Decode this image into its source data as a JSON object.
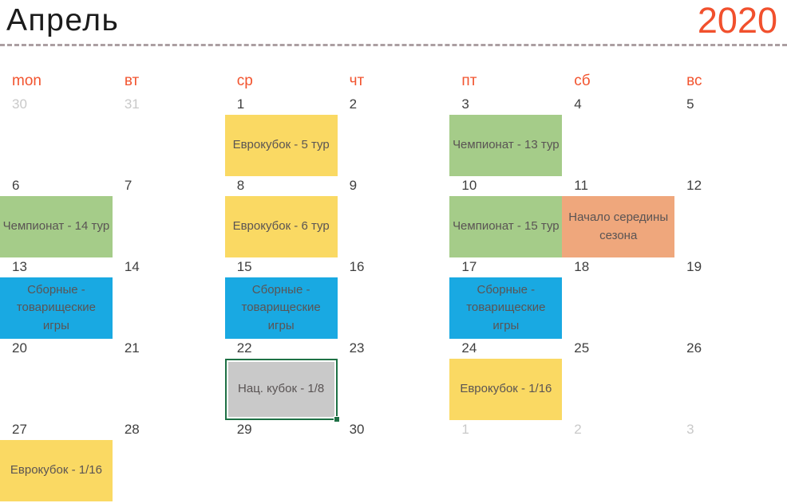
{
  "header": {
    "month": "Апрель",
    "year": "2020"
  },
  "weekdays": [
    "mon",
    "вт",
    "ср",
    "чт",
    "пт",
    "сб",
    "вс"
  ],
  "colors": {
    "accent_orange": "#F2542F",
    "year_orange": "#F1502D",
    "eurocup_yellow": "#FAD963",
    "championship_green": "#A5CC89",
    "national_teams_blue": "#19A9E2",
    "season_mid_salmon": "#EFA77C",
    "national_cup_gray": "#C9C9C9",
    "selection_border_green": "#1E7145",
    "muted_date_gray": "#C9C9C9",
    "date_dark": "#3F3F3F",
    "divider_gray": "#AB9FA2"
  },
  "weeks": [
    {
      "days": [
        {
          "date": "30",
          "muted": "true"
        },
        {
          "date": "31",
          "muted": "true"
        },
        {
          "date": "1",
          "muted": "false",
          "event": {
            "label": "Еврокубок - 5 тур",
            "type": "eurocup"
          }
        },
        {
          "date": "2",
          "muted": "false"
        },
        {
          "date": "3",
          "muted": "false",
          "event": {
            "label": "Чемпионат - 13 тур",
            "type": "championship"
          }
        },
        {
          "date": "4",
          "muted": "false"
        },
        {
          "date": "5",
          "muted": "false"
        }
      ]
    },
    {
      "days": [
        {
          "date": "6",
          "muted": "false",
          "event": {
            "label": "Чемпионат - 14 тур",
            "type": "championship"
          }
        },
        {
          "date": "7",
          "muted": "false"
        },
        {
          "date": "8",
          "muted": "false",
          "event": {
            "label": "Еврокубок - 6 тур",
            "type": "eurocup"
          }
        },
        {
          "date": "9",
          "muted": "false"
        },
        {
          "date": "10",
          "muted": "false",
          "event": {
            "label": "Чемпионат - 15 тур",
            "type": "championship"
          }
        },
        {
          "date": "11",
          "muted": "false",
          "event": {
            "label": "Начало середины сезона",
            "type": "season-mid"
          }
        },
        {
          "date": "12",
          "muted": "false"
        }
      ]
    },
    {
      "days": [
        {
          "date": "13",
          "muted": "false",
          "event": {
            "label": "Сборные - товарищеские игры",
            "type": "national-teams"
          }
        },
        {
          "date": "14",
          "muted": "false"
        },
        {
          "date": "15",
          "muted": "false",
          "event": {
            "label": "Сборные - товарищеские игры",
            "type": "national-teams"
          }
        },
        {
          "date": "16",
          "muted": "false"
        },
        {
          "date": "17",
          "muted": "false",
          "event": {
            "label": "Сборные - товарищеские игры",
            "type": "national-teams"
          }
        },
        {
          "date": "18",
          "muted": "false"
        },
        {
          "date": "19",
          "muted": "false"
        }
      ]
    },
    {
      "days": [
        {
          "date": "20",
          "muted": "false"
        },
        {
          "date": "21",
          "muted": "false"
        },
        {
          "date": "22",
          "muted": "false",
          "event": {
            "label": "Нац. кубок - 1/8",
            "type": "cup-selected"
          }
        },
        {
          "date": "23",
          "muted": "false"
        },
        {
          "date": "24",
          "muted": "false",
          "event": {
            "label": "Еврокубок - 1/16",
            "type": "eurocup"
          }
        },
        {
          "date": "25",
          "muted": "false"
        },
        {
          "date": "26",
          "muted": "false"
        }
      ]
    },
    {
      "days": [
        {
          "date": "27",
          "muted": "false",
          "event": {
            "label": "Еврокубок - 1/16",
            "type": "eurocup"
          }
        },
        {
          "date": "28",
          "muted": "false"
        },
        {
          "date": "29",
          "muted": "false"
        },
        {
          "date": "30",
          "muted": "false"
        },
        {
          "date": "1",
          "muted": "true"
        },
        {
          "date": "2",
          "muted": "true"
        },
        {
          "date": "3",
          "muted": "true"
        }
      ]
    }
  ]
}
